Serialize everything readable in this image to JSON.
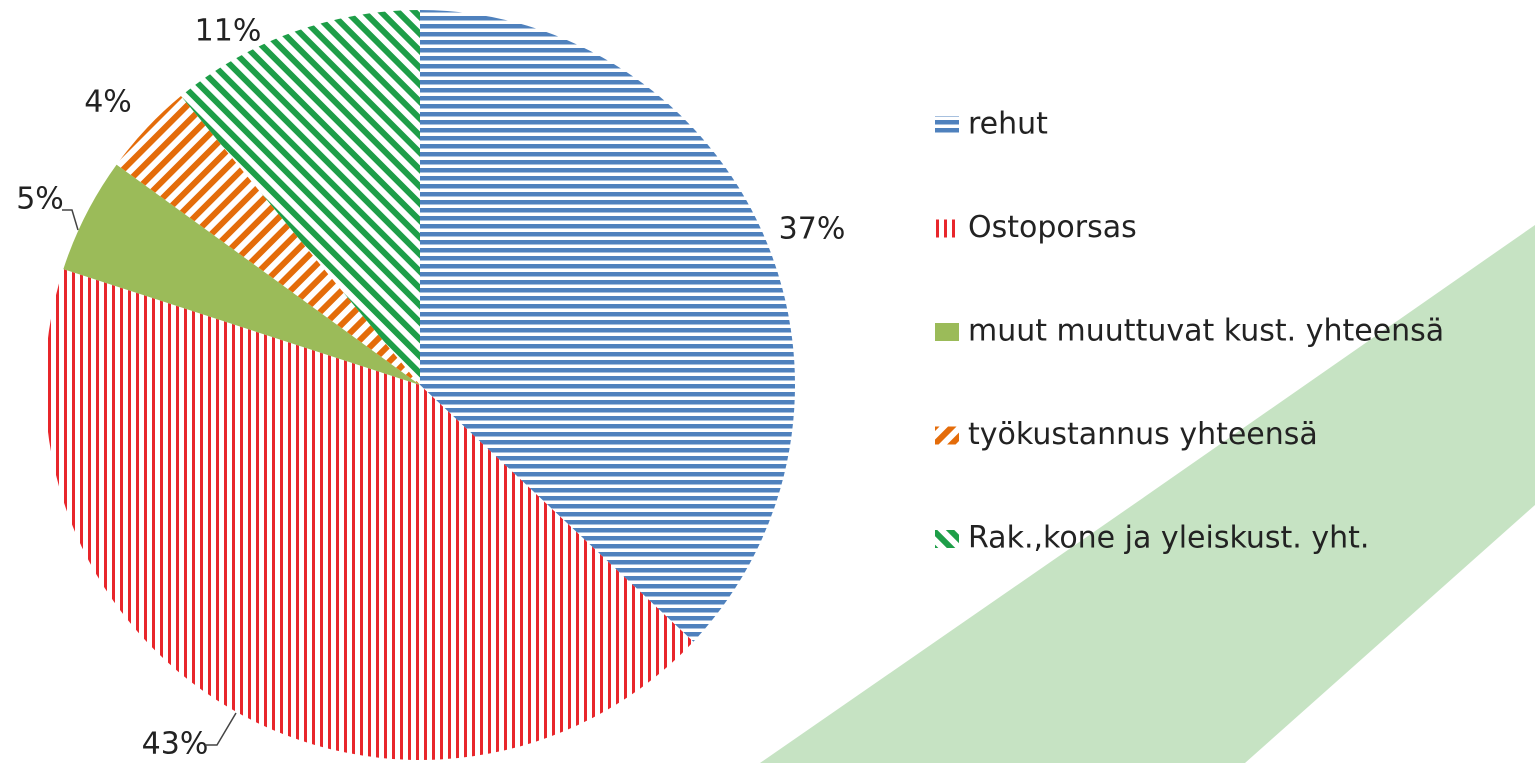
{
  "chart_data": {
    "type": "pie",
    "categories": [
      "rehut",
      "Ostoporsas",
      "muut muuttuvat kust. yhteensä",
      "työkustannus yhteensä",
      "Rak.,kone ja yleiskust. yht."
    ],
    "values": [
      37,
      43,
      5,
      4,
      11
    ],
    "value_labels": [
      "37%",
      "43%",
      "5%",
      "4%",
      "11%"
    ],
    "colors": [
      "#4f81bd",
      "#e8262b",
      "#9bbb59",
      "#e46c0a",
      "#1e9e48"
    ],
    "patterns": [
      "horizontal",
      "vertical",
      "solid",
      "diagonal-down",
      "diagonal-up"
    ],
    "legend": "right"
  }
}
